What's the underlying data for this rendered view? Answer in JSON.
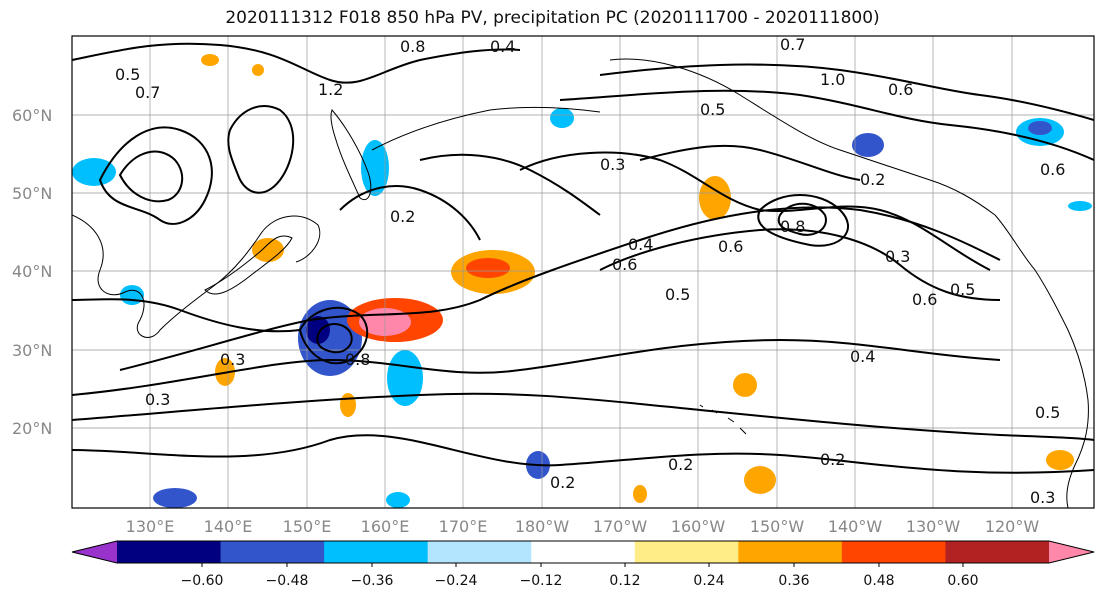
{
  "title": "2020111312 F018 850 hPa PV, precipitation PC (2020111700 - 2020111800)",
  "map": {
    "lat_labels": [
      "60°N",
      "50°N",
      "40°N",
      "30°N",
      "20°N"
    ],
    "lon_labels": [
      "130°E",
      "140°E",
      "150°E",
      "160°E",
      "170°E",
      "180°W",
      "170°W",
      "160°W",
      "150°W",
      "140°W",
      "130°W",
      "120°W"
    ],
    "contour_labels": [
      "0.4",
      "0.8",
      "1.2",
      "0.7",
      "0.5",
      "1.0",
      "0.6",
      "0.3",
      "0.2",
      "0.3",
      "0.5",
      "0.6",
      "0.4",
      "0.3",
      "0.2",
      "0.3",
      "0.2",
      "0.2",
      "0.2",
      "0.3",
      "0.6",
      "0.5",
      "0.4",
      "0.5",
      "0.8",
      "0.7",
      "0.6",
      "0.5",
      "0.6",
      "0.8"
    ]
  },
  "colorbar": {
    "colors": [
      "#9933cc",
      "#000080",
      "#3355cc",
      "#00bfff",
      "#b3e5ff",
      "#ffffff",
      "#ffee88",
      "#ffa500",
      "#ff4500",
      "#b22222",
      "#ff88aa"
    ],
    "tick_labels": [
      "−0.60",
      "−0.48",
      "−0.36",
      "−0.24",
      "−0.12",
      "0.12",
      "0.24",
      "0.36",
      "0.48",
      "0.60"
    ]
  }
}
